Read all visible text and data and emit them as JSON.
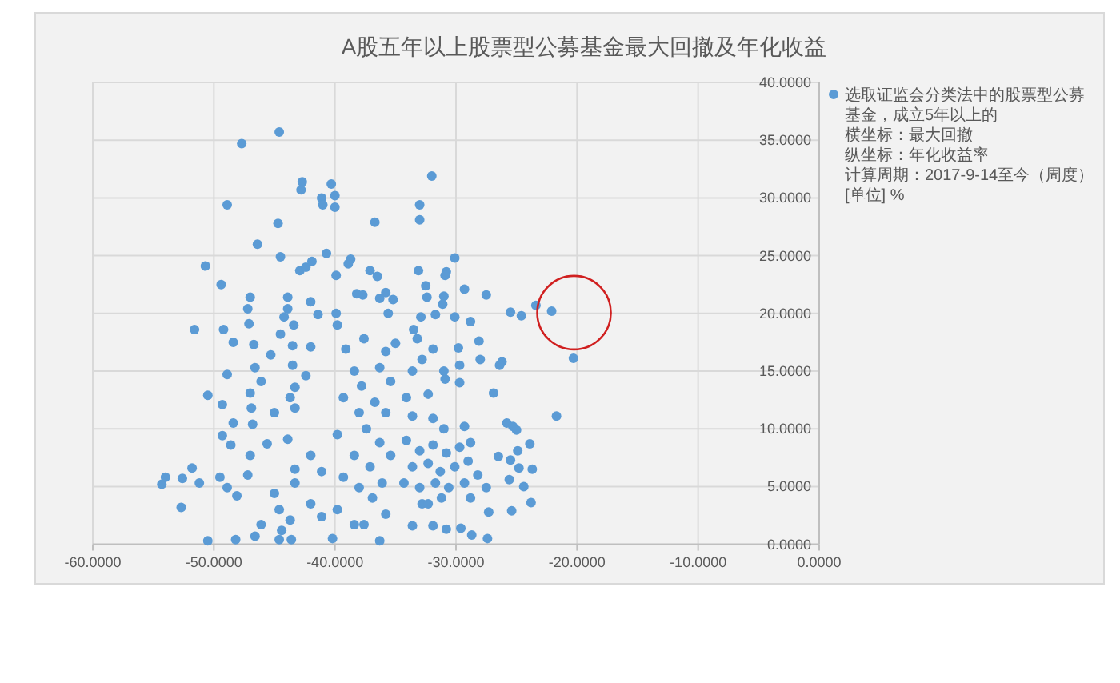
{
  "chart_data": {
    "type": "scatter",
    "title": "A股五年以上股票型公募基金最大回撤及年化收益",
    "xlim": [
      -60,
      0
    ],
    "xticks": [
      {
        "value": -60,
        "label": "-60.0000"
      },
      {
        "value": -50,
        "label": "-50.0000"
      },
      {
        "value": -40,
        "label": "-40.0000"
      },
      {
        "value": -30,
        "label": "-30.0000"
      },
      {
        "value": -20,
        "label": "-20.0000"
      },
      {
        "value": -10,
        "label": "-10.0000"
      },
      {
        "value": 0,
        "label": "0.0000"
      }
    ],
    "ylim": [
      0,
      40
    ],
    "yticks": [
      {
        "value": 0,
        "label": "0.0000"
      },
      {
        "value": 5,
        "label": "5.0000"
      },
      {
        "value": 10,
        "label": "10.0000"
      },
      {
        "value": 15,
        "label": "15.0000"
      },
      {
        "value": 20,
        "label": "20.0000"
      },
      {
        "value": 25,
        "label": "25.0000"
      },
      {
        "value": 30,
        "label": "30.0000"
      },
      {
        "value": 35,
        "label": "35.0000"
      },
      {
        "value": 40,
        "label": "40.0000"
      }
    ],
    "grid": true,
    "legend": "top right",
    "annotations": [
      "横坐标：最大回撤",
      "纵坐标：年化收益率",
      "计算周期：2017-9-14至今（周度）",
      "[单位] %"
    ],
    "series": [
      {
        "name": "选取证监会分类法中的股票型公募基金，成立5年以上的",
        "color": "#5b9bd5",
        "x": [
          -22.1,
          -44.6,
          -47.7,
          -42.7,
          -42.8,
          -40.3,
          -40.0,
          -41.1,
          -41.0,
          -40.0,
          -48.9,
          -44.7,
          -46.4,
          -44.5,
          -50.7,
          -49.4,
          -42.9,
          -42.4,
          -41.9,
          -40.7,
          -38.7,
          -38.9,
          -39.9,
          -47.0,
          -47.2,
          -47.1,
          -43.9,
          -43.9,
          -42.0,
          -38.2,
          -37.7,
          -51.6,
          -49.2,
          -44.2,
          -43.4,
          -41.4,
          -39.9,
          -39.8,
          -32.0,
          -33.0,
          -33.0,
          -36.7,
          -30.1,
          -37.1,
          -36.5,
          -33.1,
          -30.8,
          -30.9,
          -32.5,
          -29.3,
          -27.5,
          -31.0,
          -31.1,
          -32.4,
          -35.8,
          -36.3,
          -35.2,
          -23.4,
          -25.5,
          -24.6,
          -28.8,
          -30.1,
          -31.7,
          -32.9,
          -33.5,
          -35.6,
          -20.3,
          -21.7,
          -28.1,
          -28.0,
          -29.8,
          -29.7,
          -26.2,
          -26.4,
          -26.9,
          -30.9,
          -29.7,
          -25.8,
          -25.3,
          -25.0,
          -23.9,
          -24.9,
          -25.5,
          -26.5,
          -23.7,
          -24.8,
          -25.6,
          -24.4,
          -23.8,
          -25.4,
          -27.4,
          -28.7,
          -29.6,
          -30.8,
          -31.9,
          -33.6,
          -36.3,
          -27.3,
          -31.2,
          -32.8,
          -54.3,
          -54.0,
          -52.6,
          -51.8,
          -51.2,
          -52.7,
          -50.5,
          -49.5,
          -48.9,
          -47.2,
          -48.1,
          -48.2,
          -46.6,
          -46.1,
          -44.6,
          -43.6,
          -50.5,
          -49.3,
          -49.3,
          -48.4,
          -48.6,
          -48.9,
          -48.4,
          -46.6,
          -46.7,
          -44.5,
          -43.5,
          -45.3,
          -47.0,
          -46.9,
          -46.1,
          -46.8,
          -47.0,
          -45.6,
          -45.0,
          -43.7,
          -43.3,
          -43.9,
          -43.3,
          -43.5,
          -42.0,
          -42.4,
          -43.3,
          -42.0,
          -41.1,
          -45.0,
          -43.3,
          -44.6,
          -43.7,
          -44.4,
          -42.0,
          -41.1,
          -39.1,
          -38.4,
          -39.3,
          -38.0,
          -39.8,
          -38.4,
          -39.3,
          -38.0,
          -39.8,
          -38.4,
          -40.2,
          -37.6,
          -35.8,
          -35.0,
          -36.3,
          -35.4,
          -37.8,
          -36.7,
          -35.8,
          -37.4,
          -36.3,
          -35.4,
          -37.1,
          -36.1,
          -36.9,
          -35.8,
          -37.6,
          -34.1,
          -32.3,
          -33.6,
          -31.9,
          -31.0,
          -29.3,
          -34.1,
          -33.0,
          -31.9,
          -30.8,
          -29.7,
          -28.8,
          -33.6,
          -32.3,
          -31.3,
          -30.1,
          -29.0,
          -34.3,
          -33.0,
          -31.7,
          -30.6,
          -29.3,
          -28.2,
          -27.5,
          -32.3,
          -28.8,
          -33.6,
          -32.8,
          -31.9,
          -31.0,
          -33.2
        ],
        "values": [
          20.2,
          35.7,
          34.7,
          31.4,
          30.7,
          31.2,
          30.2,
          30.0,
          29.4,
          29.2,
          29.4,
          27.8,
          26.0,
          24.9,
          24.1,
          22.5,
          23.7,
          24.0,
          24.5,
          25.2,
          24.7,
          24.3,
          23.3,
          21.4,
          20.4,
          19.1,
          21.4,
          20.4,
          21.0,
          21.7,
          21.6,
          18.6,
          18.6,
          19.7,
          19.0,
          19.9,
          20.0,
          19.0,
          31.9,
          29.4,
          28.1,
          27.9,
          24.8,
          23.7,
          23.2,
          23.7,
          23.6,
          23.3,
          22.4,
          22.1,
          21.6,
          21.5,
          20.8,
          21.4,
          21.8,
          21.3,
          21.2,
          20.7,
          20.1,
          19.8,
          19.3,
          19.7,
          19.9,
          19.7,
          18.6,
          20.0,
          16.1,
          11.1,
          17.6,
          16.0,
          17.0,
          15.5,
          15.8,
          15.5,
          13.1,
          14.3,
          14.0,
          10.5,
          10.2,
          9.9,
          8.7,
          8.1,
          7.3,
          7.6,
          6.5,
          6.6,
          5.6,
          5.0,
          3.6,
          2.9,
          0.5,
          0.8,
          1.4,
          1.3,
          1.6,
          1.6,
          0.3,
          2.8,
          4.0,
          3.5,
          5.2,
          5.8,
          5.7,
          6.6,
          5.3,
          3.2,
          0.3,
          5.8,
          4.9,
          6.0,
          4.2,
          0.4,
          0.7,
          1.7,
          0.4,
          0.4,
          12.9,
          12.1,
          9.4,
          10.5,
          8.6,
          14.7,
          17.5,
          15.3,
          17.3,
          18.2,
          17.2,
          16.4,
          13.1,
          11.8,
          14.1,
          10.4,
          7.7,
          8.7,
          11.4,
          12.7,
          11.8,
          9.1,
          13.6,
          15.5,
          17.1,
          14.6,
          6.5,
          7.7,
          6.3,
          4.4,
          5.3,
          3.0,
          2.1,
          1.2,
          3.5,
          2.4,
          16.9,
          15.0,
          12.7,
          11.4,
          9.5,
          7.7,
          5.8,
          4.9,
          3.0,
          1.7,
          0.5,
          17.8,
          16.7,
          17.4,
          15.3,
          14.1,
          13.7,
          12.3,
          11.4,
          10.0,
          8.8,
          7.7,
          6.7,
          5.3,
          4.0,
          2.6,
          1.7,
          12.7,
          13.0,
          11.1,
          10.9,
          10.0,
          10.2,
          9.0,
          8.1,
          8.6,
          7.9,
          8.4,
          8.8,
          6.7,
          7.0,
          6.3,
          6.7,
          7.2,
          5.3,
          4.9,
          5.3,
          4.9,
          5.3,
          6.0,
          4.9,
          3.5,
          4.0,
          15.0,
          16.0,
          16.9,
          15.0,
          17.8
        ]
      }
    ]
  }
}
